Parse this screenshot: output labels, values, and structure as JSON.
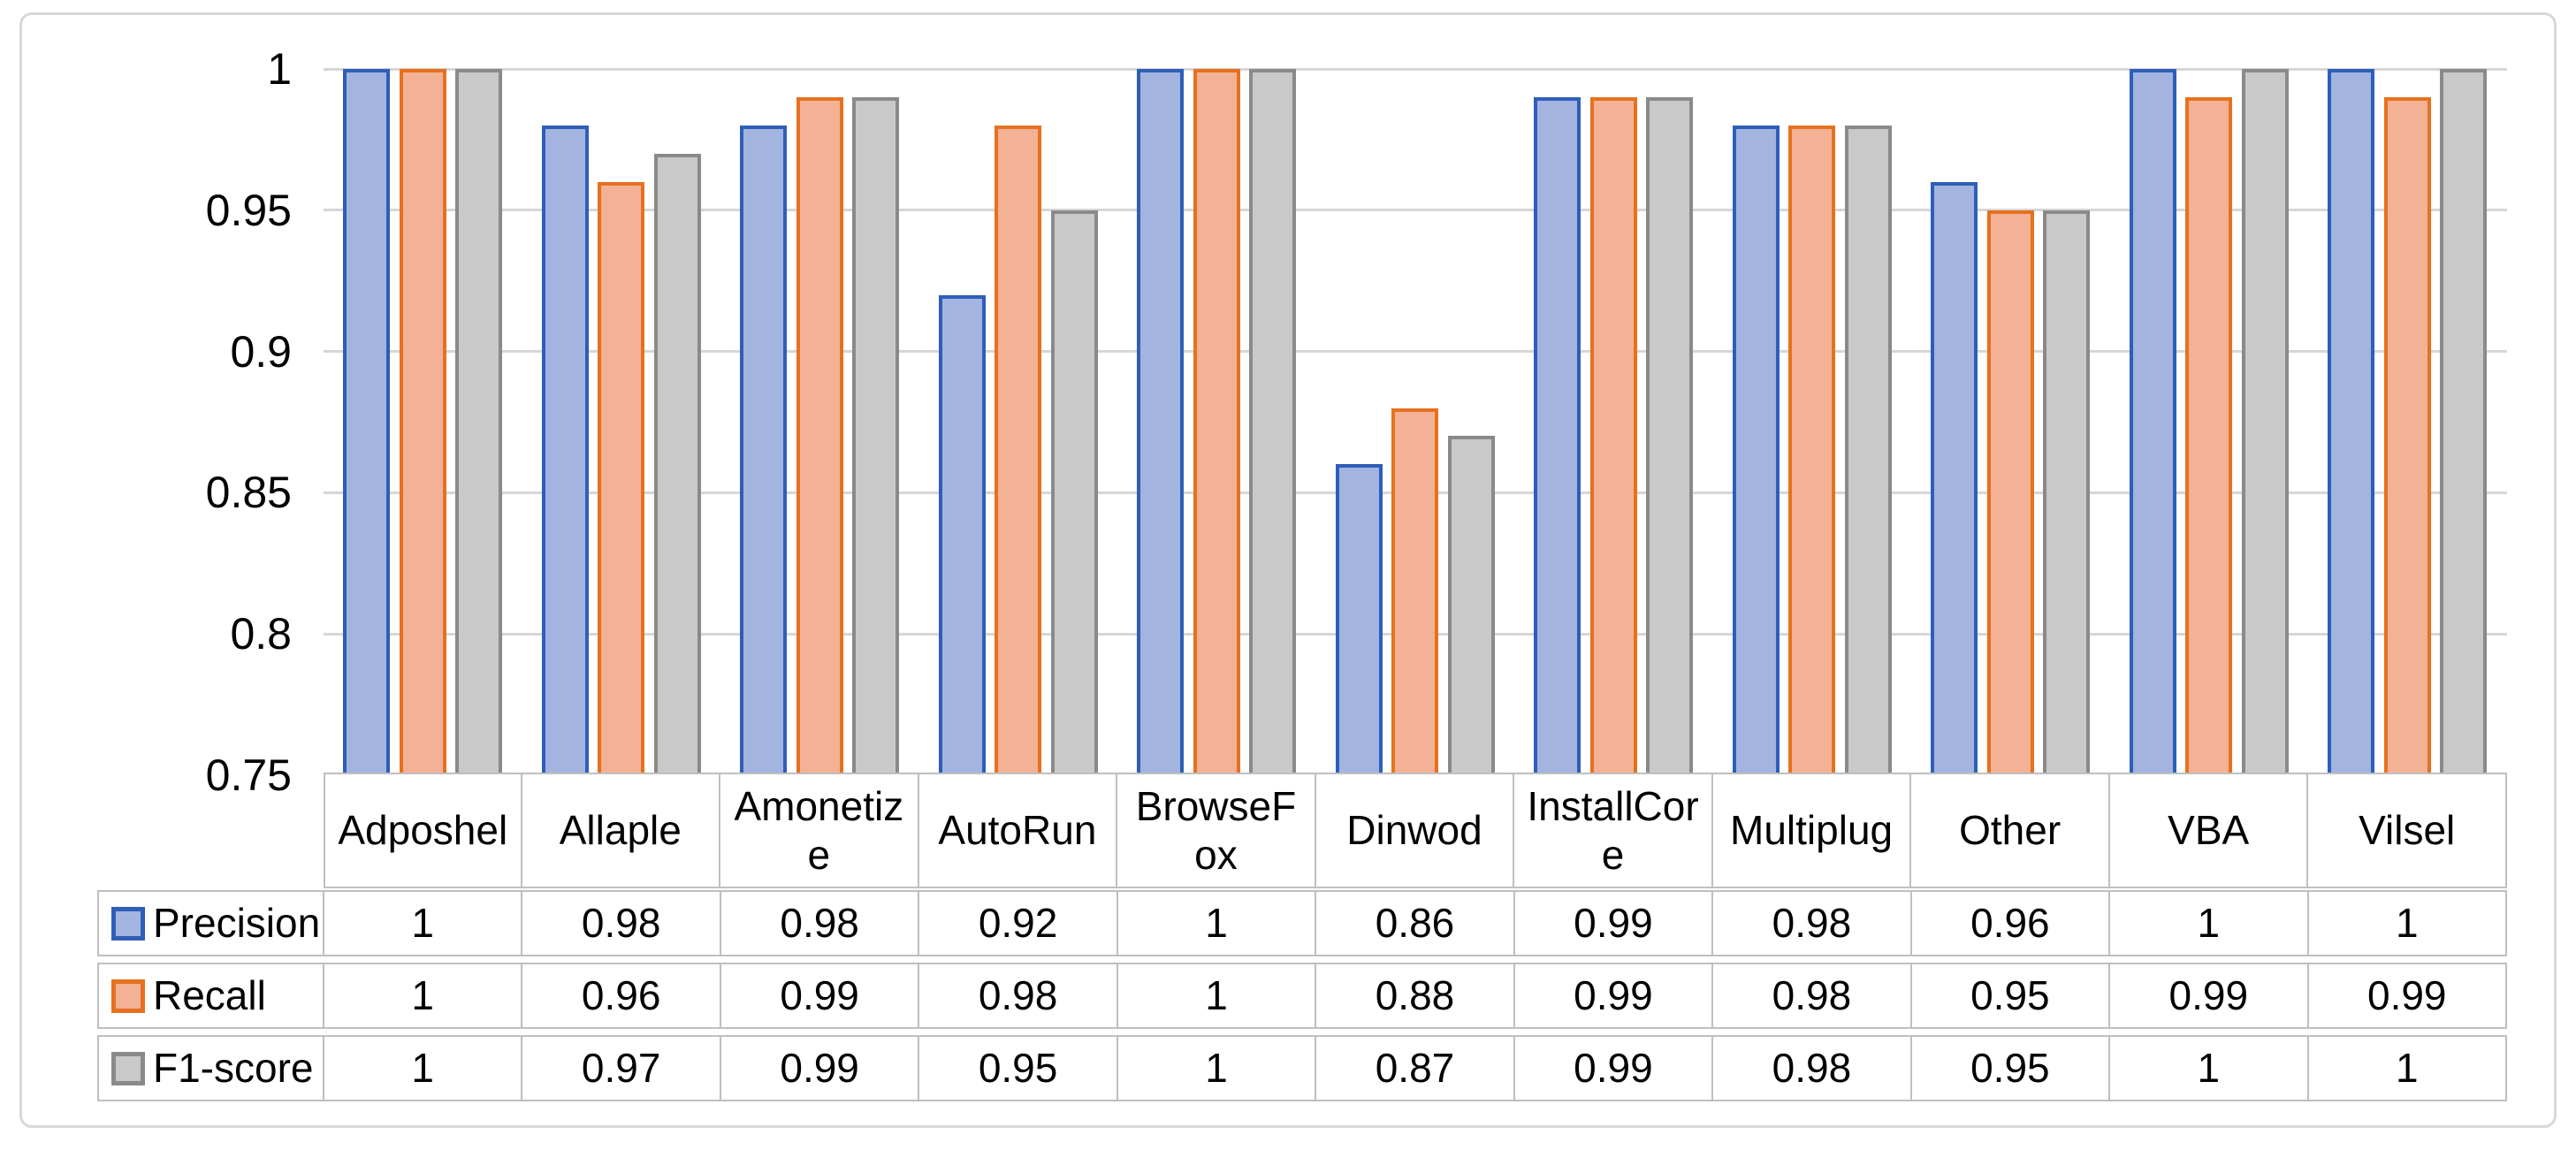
{
  "chart_data": {
    "type": "bar",
    "title": "",
    "xlabel": "",
    "ylabel": "",
    "categories": [
      "Adposhel",
      "Allaple",
      "Amonetize",
      "AutoRun",
      "BrowseFox",
      "Dinwod",
      "InstallCore",
      "Multiplug",
      "Other",
      "VBA",
      "Vilsel"
    ],
    "series": [
      {
        "name": "Precision",
        "values": [
          1,
          0.98,
          0.98,
          0.92,
          1,
          0.86,
          0.99,
          0.98,
          0.96,
          1,
          1
        ],
        "fill_color": "#A2B4DF",
        "border_color": "#2E5EB8"
      },
      {
        "name": "Recall",
        "values": [
          1,
          0.96,
          0.99,
          0.98,
          1,
          0.88,
          0.99,
          0.98,
          0.95,
          0.99,
          0.99
        ],
        "fill_color": "#F3B295",
        "border_color": "#E7711F"
      },
      {
        "name": "F1-score",
        "values": [
          1,
          0.97,
          0.99,
          0.95,
          1,
          0.87,
          0.99,
          0.98,
          0.95,
          1,
          1
        ],
        "fill_color": "#C9C9C9",
        "border_color": "#8A8A8A"
      }
    ],
    "ylim": [
      0.75,
      1.0
    ],
    "ytick_labels": [
      "1",
      "0.95",
      "0.9",
      "0.85",
      "0.8",
      "0.75"
    ],
    "grid": true,
    "legend_position": "table-row-headers",
    "table_display_values": [
      [
        "1",
        "0.98",
        "0.98",
        "0.92",
        "1",
        "0.86",
        "0.99",
        "0.98",
        "0.96",
        "1",
        "1"
      ],
      [
        "1",
        "0.96",
        "0.99",
        "0.98",
        "1",
        "0.88",
        "0.99",
        "0.98",
        "0.95",
        "0.99",
        "0.99"
      ],
      [
        "1",
        "0.97",
        "0.99",
        "0.95",
        "1",
        "0.87",
        "0.99",
        "0.98",
        "0.95",
        "1",
        "1"
      ]
    ],
    "colors": {
      "gridline": "#D6D6D6",
      "chart_frame_border": "#D8D8D8",
      "table_border": "#BFBFBF",
      "text": "#000000"
    }
  }
}
